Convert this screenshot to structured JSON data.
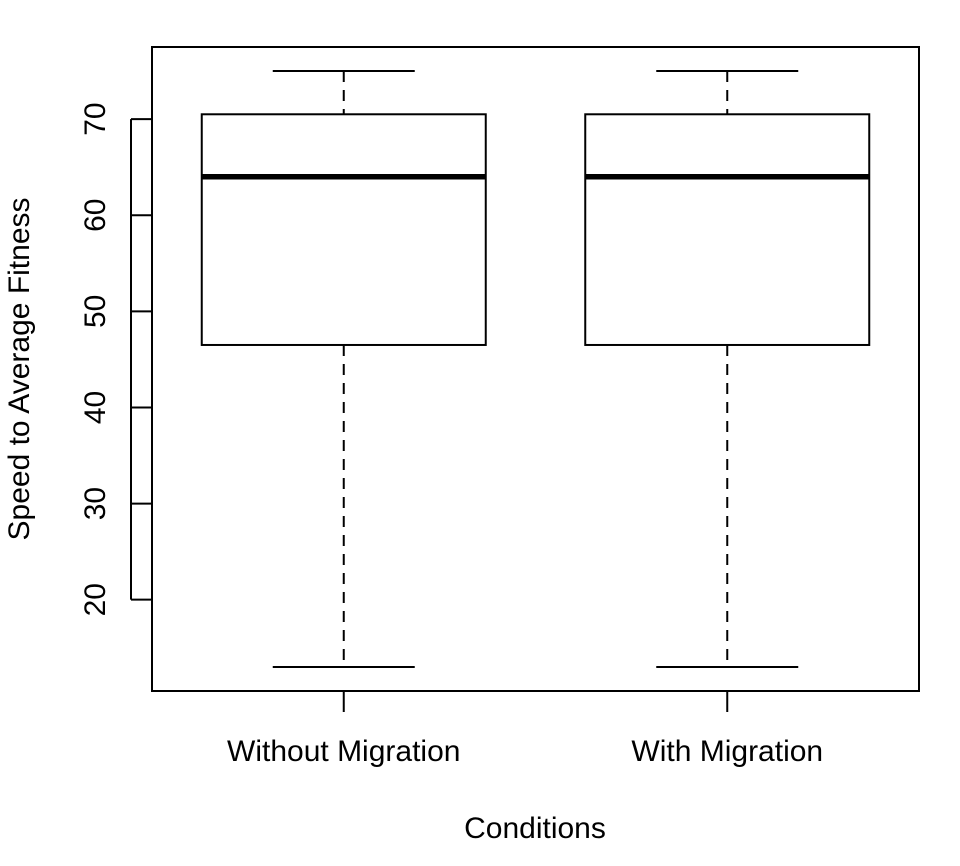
{
  "chart_data": {
    "type": "boxplot",
    "title": "",
    "xlabel": "Conditions",
    "ylabel": "Speed to Average Fitness",
    "categories": [
      "Without Migration",
      "With Migration"
    ],
    "boxes": [
      {
        "category": "Without Migration",
        "min": 13,
        "q1": 46.5,
        "median": 64,
        "q3": 70.5,
        "max": 75
      },
      {
        "category": "With Migration",
        "min": 13,
        "q1": 46.5,
        "median": 64,
        "q3": 70.5,
        "max": 75
      }
    ],
    "ylim": [
      10.5,
      77.5
    ],
    "yticks": [
      20,
      30,
      40,
      50,
      60,
      70
    ],
    "ytick_labels": [
      "20",
      "30",
      "40",
      "50",
      "60",
      "70"
    ],
    "grid": false,
    "colors": {
      "box_fill": "#ffffff",
      "stroke": "#000000"
    }
  }
}
